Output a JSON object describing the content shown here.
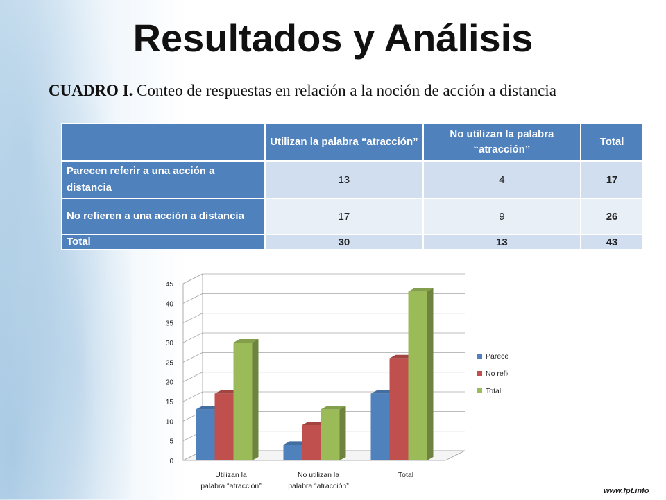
{
  "title": "Resultados y Análisis",
  "subtitle_lead": "CUADRO I.",
  "subtitle_text": " Conteo de respuestas en relación a la noción de acción a distancia",
  "table": {
    "headers": [
      "",
      "Utilizan la palabra “atracción”",
      "No utilizan la palabra “atracción”",
      "Total"
    ],
    "rows": [
      {
        "label": "Parecen referir a una acción a distancia",
        "values": [
          "13",
          "4",
          "17"
        ]
      },
      {
        "label": "No refieren a una acción a distancia",
        "values": [
          "17",
          "9",
          "26"
        ]
      },
      {
        "label": "Total",
        "values": [
          "30",
          "13",
          "43"
        ]
      }
    ]
  },
  "watermark": "www.fpt.info",
  "chart_data": {
    "type": "bar",
    "categories": [
      "Utilizan la palabra “atracción”",
      "No utilizan la palabra “atracción”",
      "Total"
    ],
    "series": [
      {
        "name": "Parecen referir a una acción a distancia",
        "values": [
          13,
          4,
          17
        ],
        "color": "#4f81bd"
      },
      {
        "name": "No refieren a una acción a distancia",
        "values": [
          17,
          9,
          26
        ],
        "color": "#c0504d"
      },
      {
        "name": "Total",
        "values": [
          30,
          13,
          43
        ],
        "color": "#9bbb59"
      }
    ],
    "ylim": [
      0,
      45
    ],
    "yticks": [
      0,
      5,
      10,
      15,
      20,
      25,
      30,
      35,
      40,
      45
    ],
    "grid": true,
    "legend": "right",
    "style": "3d-column"
  }
}
